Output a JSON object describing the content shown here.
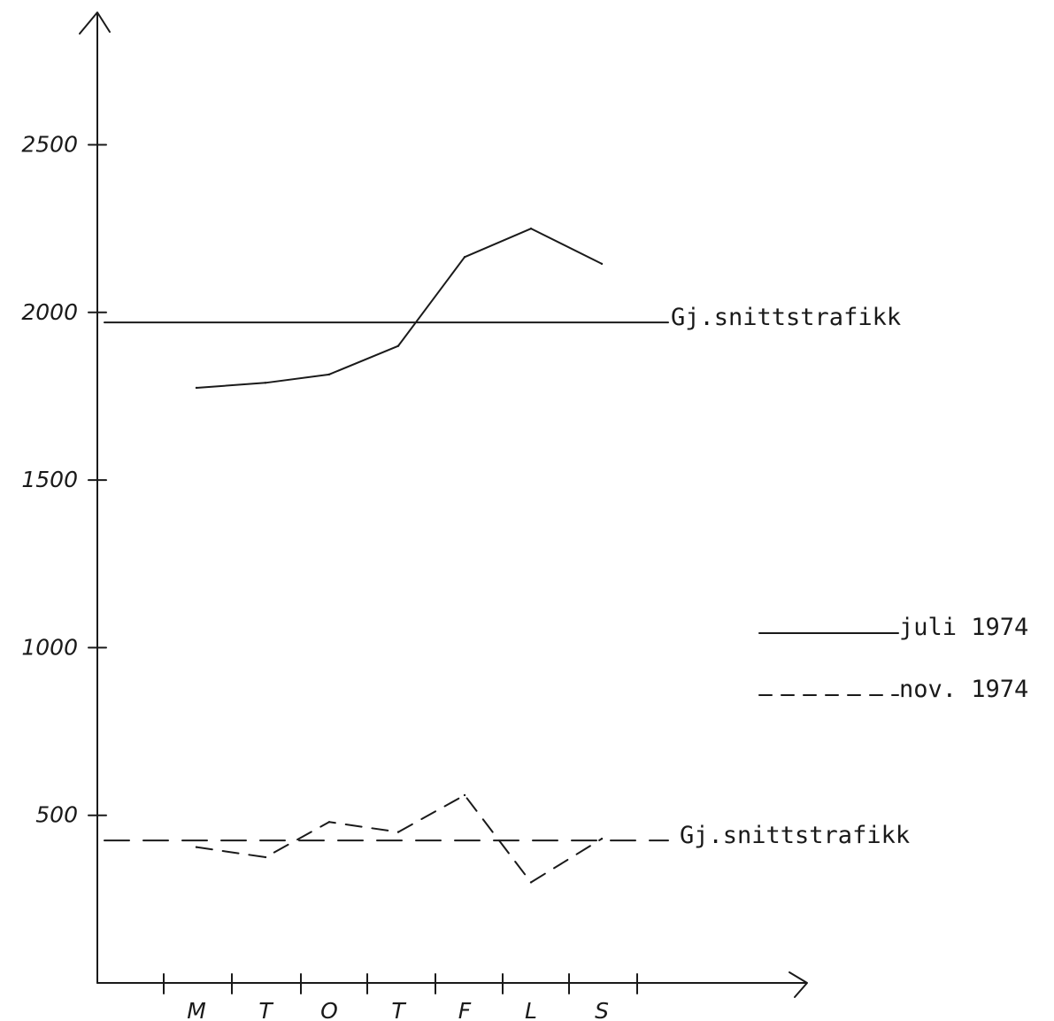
{
  "chart_data": {
    "type": "line",
    "categories": [
      "M",
      "T",
      "O",
      "T",
      "F",
      "L",
      "S"
    ],
    "ylim": [
      0,
      3000
    ],
    "yticks": [
      "2500",
      "2000",
      "1500",
      "1000",
      "500"
    ],
    "ytick_values": [
      2500,
      2000,
      1500,
      1000,
      500
    ],
    "series": [
      {
        "name": "juli 1974",
        "style": "solid",
        "values": [
          1775,
          1790,
          1815,
          1900,
          2165,
          2250,
          2145
        ]
      },
      {
        "name": "nov. 1974",
        "style": "dashed",
        "values": [
          405,
          375,
          480,
          450,
          560,
          300,
          430
        ]
      }
    ],
    "reference_lines": [
      {
        "label": "Gj.snittstrafikk",
        "value": 1970,
        "style": "solid"
      },
      {
        "label": "Gj.snittstrafikk",
        "value": 425,
        "style": "dashed"
      }
    ],
    "legend": [
      {
        "label": "juli 1974",
        "style": "solid"
      },
      {
        "label": "nov. 1974",
        "style": "dashed"
      }
    ],
    "grid": false,
    "legend_position": "right"
  },
  "colors": {
    "ink": "#1a1a1a",
    "background": "#ffffff"
  }
}
